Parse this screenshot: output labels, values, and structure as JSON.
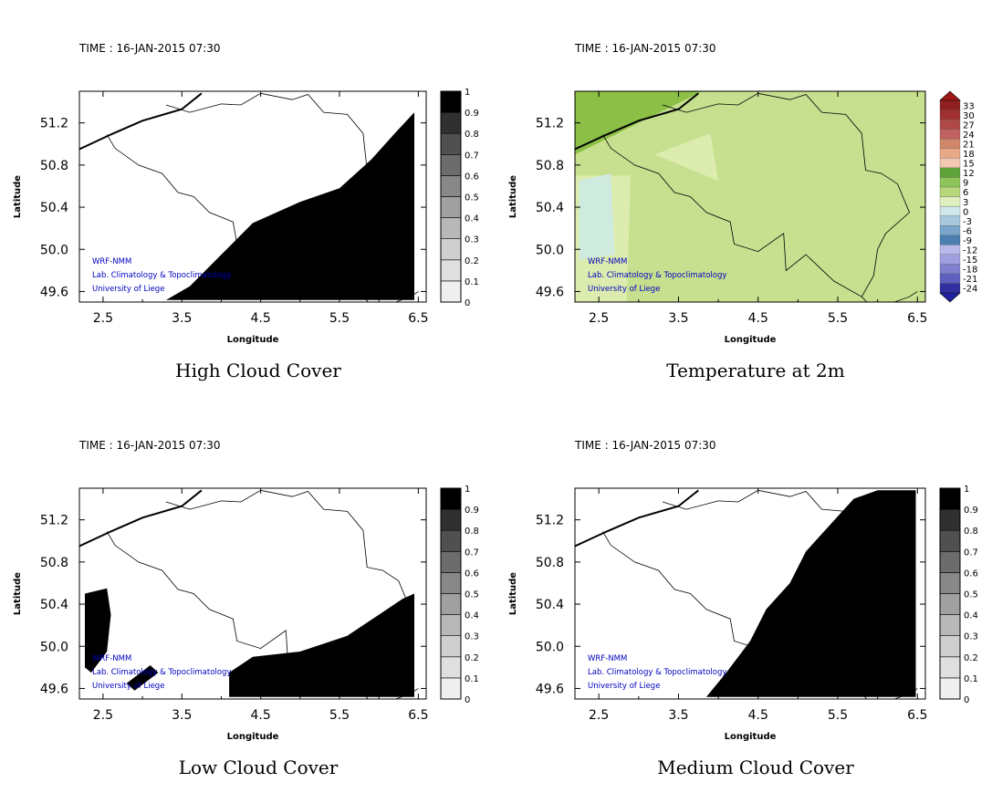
{
  "time_label": "TIME : 16-JAN-2015 07:30",
  "credit": [
    "WRF-NMM",
    "Lab. Climatology & Topoclimatology",
    "University of Liege"
  ],
  "panels": [
    {
      "id": "high-cloud",
      "title": "High Cloud Cover",
      "field": "high",
      "xlabel": "Longitude",
      "ylabel": "Latitude",
      "legend": {
        "type": "gray",
        "labels": [
          "0",
          "0.1",
          "0.2",
          "0.3",
          "0.4",
          "0.5",
          "0.6",
          "0.7",
          "0.8",
          "0.9",
          "1"
        ]
      }
    },
    {
      "id": "temperature-2m",
      "title": "Temperature at 2m",
      "field": "temp",
      "xlabel": "Longitude",
      "ylabel": "Latitude",
      "legend": {
        "type": "color",
        "labels": [
          "-24",
          "-21",
          "-18",
          "-15",
          "-12",
          "-9",
          "-6",
          "-3",
          "0",
          "3",
          "6",
          "9",
          "12",
          "15",
          "18",
          "21",
          "24",
          "27",
          "30",
          "33"
        ]
      }
    },
    {
      "id": "low-cloud",
      "title": "Low Cloud Cover",
      "field": "low",
      "xlabel": "Longitude",
      "ylabel": "Latitude",
      "legend": {
        "type": "gray",
        "labels": [
          "0",
          "0.1",
          "0.2",
          "0.3",
          "0.4",
          "0.5",
          "0.6",
          "0.7",
          "0.8",
          "0.9",
          "1"
        ]
      }
    },
    {
      "id": "medium-cloud",
      "title": "Medium Cloud Cover",
      "field": "medium",
      "xlabel": "Longitude",
      "ylabel": "Latitude",
      "legend": {
        "type": "gray",
        "labels": [
          "0",
          "0.1",
          "0.2",
          "0.3",
          "0.4",
          "0.5",
          "0.6",
          "0.7",
          "0.8",
          "0.9",
          "1"
        ]
      }
    }
  ],
  "chart_data": {
    "type": "heatmap",
    "xlim": [
      2.2,
      6.6
    ],
    "ylim": [
      49.5,
      51.5
    ],
    "xticks": [
      2.5,
      3.5,
      4.5,
      5.5,
      6.5
    ],
    "xtick_labels": [
      "2.5",
      "3.5",
      "4.5",
      "5.5",
      "6.5"
    ],
    "yticks": [
      49.6,
      50.0,
      50.4,
      50.8,
      51.2
    ],
    "ytick_labels": [
      "49.6",
      "50.0",
      "50.4",
      "50.8",
      "51.2"
    ],
    "coastline": [
      [
        2.2,
        50.95
      ],
      [
        2.6,
        51.09
      ],
      [
        3.0,
        51.22
      ],
      [
        3.5,
        51.33
      ],
      [
        3.75,
        51.48
      ]
    ],
    "border": [
      [
        2.55,
        51.09
      ],
      [
        2.65,
        50.96
      ],
      [
        2.95,
        50.8
      ],
      [
        3.25,
        50.72
      ],
      [
        3.45,
        50.54
      ],
      [
        3.65,
        50.5
      ],
      [
        3.85,
        50.35
      ],
      [
        4.15,
        50.26
      ],
      [
        4.2,
        50.05
      ],
      [
        4.5,
        49.98
      ],
      [
        4.82,
        50.15
      ],
      [
        4.85,
        49.8
      ],
      [
        5.1,
        49.95
      ],
      [
        5.45,
        49.7
      ],
      [
        5.8,
        49.55
      ],
      [
        5.93,
        49.45
      ],
      [
        6.1,
        49.47
      ],
      [
        6.4,
        49.55
      ],
      [
        6.5,
        49.6
      ]
    ],
    "belgium_north": [
      [
        3.3,
        51.37
      ],
      [
        3.6,
        51.3
      ],
      [
        4.0,
        51.38
      ],
      [
        4.25,
        51.37
      ],
      [
        4.5,
        51.48
      ],
      [
        4.9,
        51.42
      ],
      [
        5.1,
        51.47
      ],
      [
        5.3,
        51.3
      ],
      [
        5.6,
        51.28
      ],
      [
        5.8,
        51.1
      ],
      [
        5.85,
        50.75
      ],
      [
        6.05,
        50.72
      ],
      [
        6.25,
        50.62
      ],
      [
        6.4,
        50.35
      ],
      [
        6.1,
        50.15
      ],
      [
        6.0,
        50.0
      ],
      [
        5.95,
        49.75
      ],
      [
        5.8,
        49.55
      ]
    ],
    "high_cloud_cover": [
      [
        3.3,
        49.52
      ],
      [
        3.6,
        49.65
      ],
      [
        4.0,
        49.95
      ],
      [
        4.4,
        50.25
      ],
      [
        5.0,
        50.45
      ],
      [
        5.5,
        50.58
      ],
      [
        5.9,
        50.85
      ],
      [
        6.2,
        51.1
      ],
      [
        6.45,
        51.3
      ],
      [
        6.45,
        49.52
      ]
    ],
    "low_cloud_cover": [
      [
        [
          2.27,
          50.5
        ],
        [
          2.55,
          50.55
        ],
        [
          2.6,
          50.3
        ],
        [
          2.55,
          49.95
        ],
        [
          2.35,
          49.75
        ],
        [
          2.27,
          49.8
        ]
      ],
      [
        [
          2.8,
          49.65
        ],
        [
          3.1,
          49.82
        ],
        [
          3.2,
          49.75
        ],
        [
          2.9,
          49.58
        ]
      ],
      [
        [
          4.1,
          49.75
        ],
        [
          4.4,
          49.9
        ],
        [
          5.0,
          49.95
        ],
        [
          5.6,
          50.1
        ],
        [
          6.0,
          50.3
        ],
        [
          6.3,
          50.45
        ],
        [
          6.45,
          50.5
        ],
        [
          6.45,
          49.52
        ],
        [
          4.1,
          49.52
        ]
      ]
    ],
    "medium_cloud_cover": [
      [
        3.85,
        49.52
      ],
      [
        4.1,
        49.75
      ],
      [
        4.4,
        50.05
      ],
      [
        4.6,
        50.35
      ],
      [
        4.9,
        50.6
      ],
      [
        5.1,
        50.9
      ],
      [
        5.4,
        51.15
      ],
      [
        5.7,
        51.4
      ],
      [
        6.0,
        51.48
      ],
      [
        6.48,
        51.48
      ],
      [
        6.48,
        49.52
      ]
    ],
    "temperature_note_levels": [
      -24,
      -21,
      -18,
      -15,
      -12,
      -9,
      -6,
      -3,
      0,
      3,
      6,
      9,
      12,
      15,
      18,
      21,
      24,
      27,
      30,
      33
    ]
  },
  "colors": {
    "temp_fill": "#c6e08f",
    "temp_fill_light": "#dbecae",
    "temp_fill_cold": "#cfeade",
    "temp_fill_dark": "#8cbf45",
    "credit_blue": "#0000c0"
  }
}
